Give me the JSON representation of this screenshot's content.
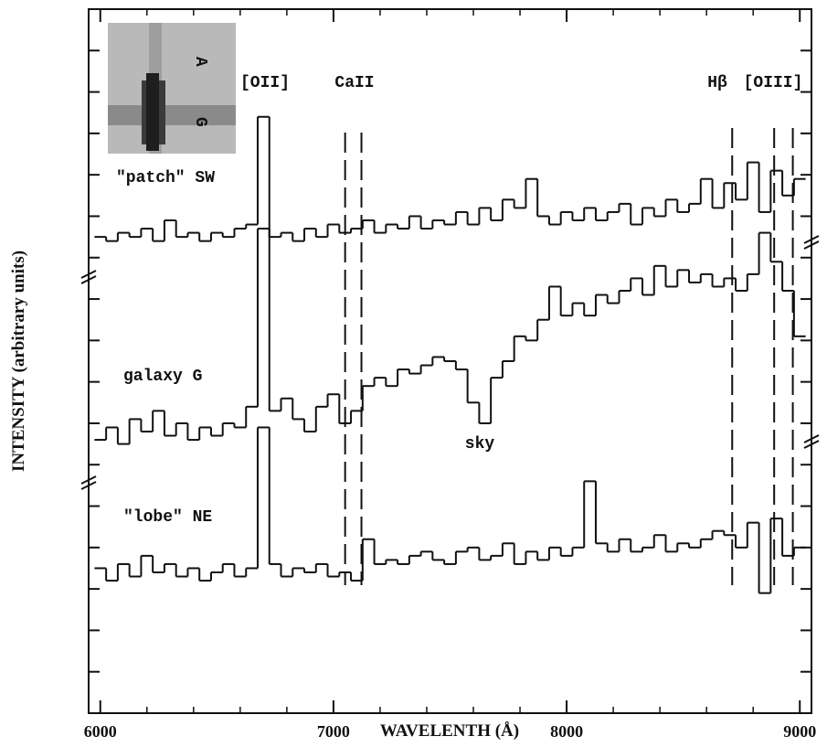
{
  "chart_data": {
    "type": "step",
    "xlabel": "WAVELENTH (Å)",
    "ylabel": "INTENSITY (arbitrary units)",
    "xlim": [
      5950,
      9050
    ],
    "xticks": [
      6000,
      7000,
      8000,
      9000
    ],
    "xminorticks": [
      6200,
      6400,
      6600,
      6800,
      7200,
      7400,
      7600,
      7800,
      8200,
      8400,
      8600,
      8800
    ],
    "ylim": [
      0,
      17
    ],
    "yticks": [
      1,
      2,
      3,
      4,
      5,
      6,
      7,
      8,
      9,
      10,
      11,
      12,
      13,
      14,
      15,
      16
    ],
    "x": [
      6000,
      6050,
      6100,
      6150,
      6200,
      6250,
      6300,
      6350,
      6400,
      6450,
      6500,
      6550,
      6600,
      6650,
      6700,
      6750,
      6800,
      6850,
      6900,
      6950,
      7000,
      7050,
      7100,
      7150,
      7200,
      7250,
      7300,
      7350,
      7400,
      7450,
      7500,
      7550,
      7600,
      7650,
      7700,
      7750,
      7800,
      7850,
      7900,
      7950,
      8000,
      8050,
      8100,
      8150,
      8200,
      8250,
      8300,
      8350,
      8400,
      8450,
      8500,
      8550,
      8600,
      8650,
      8700,
      8750,
      8800,
      8850,
      8900,
      8950,
      9000
    ],
    "series": [
      {
        "name": "\"patch\" SW",
        "color": "#111111",
        "values": [
          11.5,
          11.4,
          11.6,
          11.5,
          11.7,
          11.4,
          11.9,
          11.5,
          11.6,
          11.4,
          11.6,
          11.5,
          11.7,
          11.8,
          14.4,
          11.5,
          11.6,
          11.4,
          11.7,
          11.5,
          11.8,
          11.6,
          11.7,
          11.9,
          11.6,
          11.8,
          11.7,
          12.0,
          11.7,
          11.9,
          11.8,
          12.1,
          11.8,
          12.2,
          11.9,
          12.4,
          12.2,
          12.9,
          12.0,
          11.8,
          12.1,
          11.9,
          12.2,
          11.9,
          12.1,
          12.3,
          11.8,
          12.2,
          12.0,
          12.4,
          12.1,
          12.3,
          12.9,
          12.2,
          12.8,
          12.4,
          13.3,
          12.1,
          13.1,
          12.5,
          12.9
        ]
      },
      {
        "name": "galaxy G",
        "color": "#111111",
        "values": [
          6.6,
          6.9,
          6.5,
          7.1,
          6.8,
          7.3,
          6.7,
          7.0,
          6.6,
          6.9,
          6.7,
          7.0,
          6.9,
          7.4,
          11.7,
          7.3,
          7.6,
          7.1,
          6.8,
          7.4,
          7.7,
          7.0,
          7.3,
          7.9,
          8.1,
          7.9,
          8.3,
          8.2,
          8.4,
          8.6,
          8.5,
          8.3,
          7.5,
          7.0,
          8.1,
          8.5,
          9.1,
          9.0,
          9.5,
          10.3,
          9.6,
          9.9,
          9.6,
          10.1,
          9.9,
          10.2,
          10.5,
          10.1,
          10.8,
          10.3,
          10.7,
          10.4,
          10.6,
          10.3,
          10.5,
          10.2,
          10.6,
          11.6,
          10.9,
          10.2,
          9.1
        ]
      },
      {
        "name": "\"lobe\" NE",
        "color": "#111111",
        "values": [
          3.5,
          3.2,
          3.6,
          3.3,
          3.8,
          3.4,
          3.6,
          3.3,
          3.5,
          3.2,
          3.4,
          3.6,
          3.3,
          3.5,
          6.9,
          3.6,
          3.3,
          3.5,
          3.4,
          3.6,
          3.3,
          3.4,
          3.2,
          4.2,
          3.6,
          3.7,
          3.6,
          3.8,
          3.9,
          3.7,
          3.6,
          3.9,
          4.0,
          3.7,
          3.8,
          4.1,
          3.6,
          3.9,
          3.7,
          4.0,
          3.8,
          4.0,
          5.6,
          4.1,
          3.9,
          4.2,
          3.9,
          4.0,
          4.3,
          3.9,
          4.1,
          4.0,
          4.2,
          4.4,
          4.3,
          4.0,
          4.6,
          2.9,
          4.7,
          3.8,
          4.0
        ]
      }
    ],
    "line_markers": [
      7050,
      7120,
      8710,
      8890,
      8970
    ],
    "annotations": [
      "[OII]",
      "CaII",
      "Hβ",
      "[OIII]",
      "sky"
    ],
    "inset_labels": [
      "A",
      "G"
    ]
  }
}
